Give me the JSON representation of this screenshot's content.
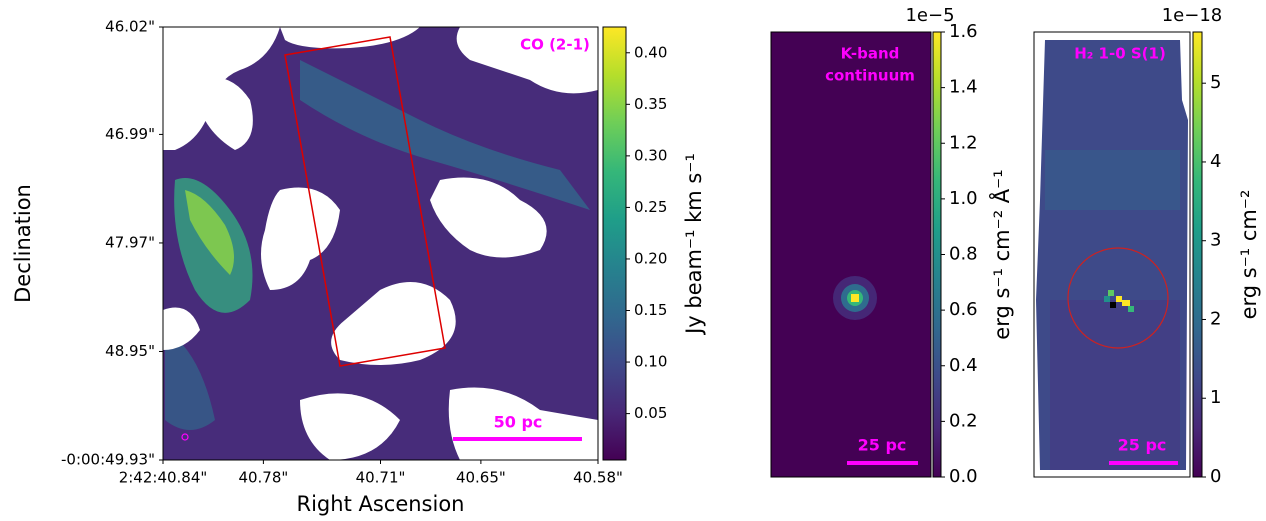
{
  "chart_data": [
    {
      "type": "image",
      "colormap": "viridis",
      "title": [
        "CO (2-1)"
      ],
      "title_color": "#ff00ff",
      "xlabel": "Right Ascension",
      "ylabel": "Declination",
      "xlim": [
        40.84,
        40.58
      ],
      "xticks": [
        {
          "value": 40.84,
          "label": "2:42:40.84\""
        },
        {
          "value": 40.78,
          "label": "40.78\""
        },
        {
          "value": 40.71,
          "label": "40.71\""
        },
        {
          "value": 40.65,
          "label": "40.65\""
        },
        {
          "value": 40.58,
          "label": "40.58\""
        }
      ],
      "ylim": [
        49.93,
        46.02
      ],
      "yticks": [
        {
          "value": 46.02,
          "label": "46.02\""
        },
        {
          "value": 46.99,
          "label": "46.99\""
        },
        {
          "value": 47.97,
          "label": "47.97\""
        },
        {
          "value": 48.95,
          "label": "48.95\""
        },
        {
          "value": 49.93,
          "label": "-0:00:49.93\""
        }
      ],
      "colorbar": {
        "label": "Jy beam⁻¹ km s⁻¹",
        "lim": [
          0.005,
          0.425
        ],
        "ticks": [
          0.05,
          {
            "value": 0.1,
            "label": "0.10"
          },
          0.15,
          {
            "value": 0.2,
            "label": "0.20"
          },
          0.25,
          {
            "value": 0.3,
            "label": "0.30"
          },
          0.35,
          {
            "value": 0.4,
            "label": "0.40"
          }
        ]
      },
      "scalebar": "50 pc"
    },
    {
      "type": "image",
      "colormap": "viridis",
      "title": [
        "K-band",
        "continuum"
      ],
      "title_color": "#ff00ff",
      "colorbar": {
        "label": "erg s⁻¹ cm⁻² Å⁻¹",
        "offset": "1e−5",
        "lim": [
          0,
          1.6
        ],
        "ticks": [
          {
            "value": 0,
            "label": "0.0"
          },
          0.2,
          0.4,
          0.6,
          0.8,
          {
            "value": 1,
            "label": "1.0"
          },
          1.2,
          1.4,
          1.6
        ]
      },
      "scalebar": "25 pc"
    },
    {
      "type": "image",
      "colormap": "viridis",
      "title": [
        "H₂ 1-0 S(1)"
      ],
      "title_color": "#ff00ff",
      "colorbar": {
        "label": "erg s⁻¹ cm⁻²",
        "offset": "1e−18",
        "lim": [
          0,
          5.65
        ],
        "ticks": [
          0,
          1,
          2,
          3,
          4,
          5
        ]
      },
      "scalebar": "25 pc"
    }
  ]
}
